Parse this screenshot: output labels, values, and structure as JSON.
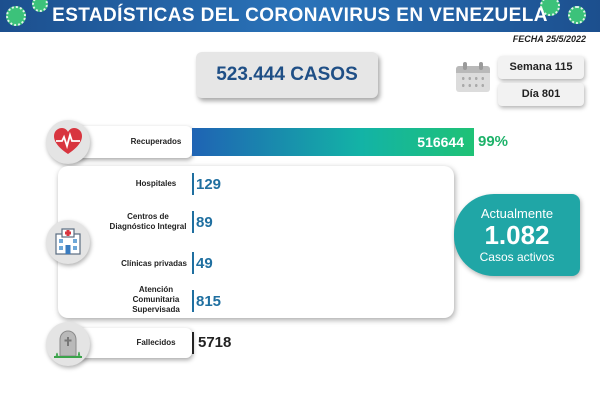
{
  "header": {
    "title": "ESTADÍSTICAS DEL CORONAVIRUS EN VENEZUELA"
  },
  "fecha": "FECHA 25/5/2022",
  "casos": "523.444 CASOS",
  "semana": "Semana 115",
  "dia": "Día 801",
  "recuperados": {
    "label": "Recuperados",
    "value": "516644",
    "percent": "99%",
    "fraction": 0.99
  },
  "hospitales": {
    "label": "Hospitales",
    "value": "129"
  },
  "cdi": {
    "label_line1": "Centros de",
    "label_line2": "Diagnóstico Integral",
    "value": "89"
  },
  "clinicas": {
    "label": "Clínicas privadas",
    "value": "49"
  },
  "acs": {
    "label_line1": "Atención",
    "label_line2": "Comunitaria",
    "label_line3": "Supervisada",
    "value": "815"
  },
  "activos": {
    "line1": "Actualmente",
    "value": "1.082",
    "line3": "Casos activos"
  },
  "fallecidos": {
    "label": "Fallecidos",
    "value": "5718"
  },
  "colors": {
    "header": "#1c4f8e",
    "accent_green": "#1eb26a",
    "teal": "#20a6a6",
    "value_blue": "#1f6fa0"
  },
  "icons": [
    "virus-icon",
    "calendar-icon",
    "heart-icon",
    "hospital-icon",
    "tombstone-icon"
  ]
}
